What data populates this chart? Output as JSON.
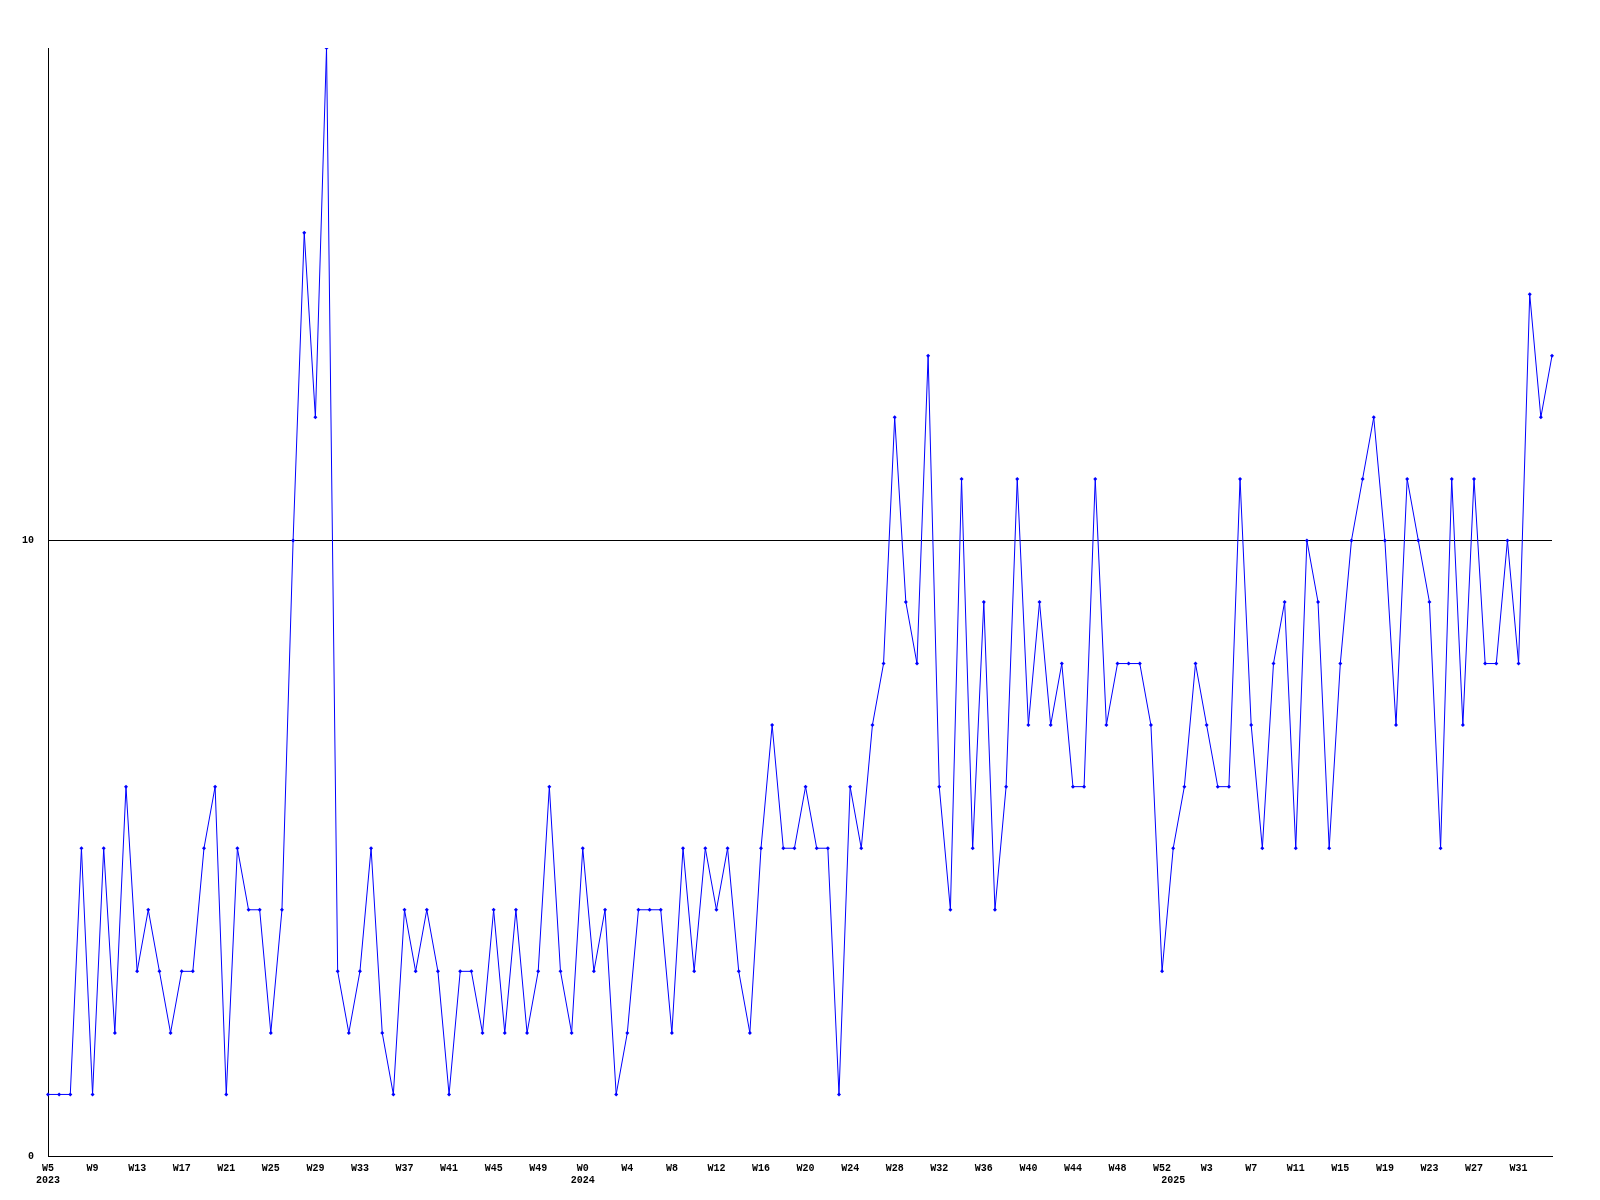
{
  "chart_data": {
    "type": "line",
    "categories": [
      "W5\n2023",
      null,
      null,
      null,
      "W9",
      null,
      null,
      null,
      "W13",
      null,
      null,
      null,
      "W17",
      null,
      null,
      null,
      "W21",
      null,
      null,
      null,
      "W25",
      null,
      null,
      null,
      "W29",
      null,
      null,
      null,
      "W33",
      null,
      null,
      null,
      "W37",
      null,
      null,
      null,
      "W41",
      null,
      null,
      null,
      "W45",
      null,
      null,
      null,
      "W49",
      null,
      null,
      null,
      "W0\n2024",
      null,
      null,
      null,
      "W4",
      null,
      null,
      null,
      "W8",
      null,
      null,
      null,
      "W12",
      null,
      null,
      null,
      "W16",
      null,
      null,
      null,
      "W20",
      null,
      null,
      null,
      "W24",
      null,
      null,
      null,
      "W28",
      null,
      null,
      null,
      "W32",
      null,
      null,
      null,
      "W36",
      null,
      null,
      null,
      "W40",
      null,
      null,
      null,
      "W44",
      null,
      null,
      null,
      "W48",
      null,
      null,
      null,
      "W52",
      "\n2025",
      null,
      null,
      "W3",
      null,
      null,
      null,
      "W7",
      null,
      null,
      null,
      "W11",
      null,
      null,
      null,
      "W15",
      null,
      null,
      null,
      "W19",
      null,
      null,
      null,
      "W23",
      null,
      null,
      null,
      "W27",
      null,
      null,
      null,
      "W31",
      null,
      null,
      null
    ],
    "series": [
      {
        "color": "#0000ff",
        "values": [
          1,
          1,
          1,
          5,
          1,
          5,
          2,
          6,
          3,
          4,
          3,
          2,
          3,
          3,
          5,
          6,
          1,
          5,
          4,
          4,
          2,
          4,
          10,
          15,
          12,
          18,
          3,
          2,
          3,
          5,
          2,
          1,
          4,
          3,
          4,
          3,
          1,
          3,
          3,
          2,
          4,
          2,
          4,
          2,
          3,
          6,
          3,
          2,
          5,
          3,
          4,
          1,
          2,
          4,
          4,
          4,
          2,
          5,
          3,
          5,
          4,
          5,
          3,
          2,
          5,
          7,
          5,
          5,
          6,
          5,
          5,
          1,
          6,
          5,
          7,
          8,
          12,
          9,
          8,
          13,
          6,
          4,
          11,
          5,
          9,
          4,
          6,
          11,
          7,
          9,
          7,
          8,
          6,
          6,
          11,
          7,
          8,
          8,
          8,
          7,
          3,
          5,
          6,
          8,
          7,
          6,
          6,
          11,
          7,
          5,
          8,
          9,
          5,
          10,
          9,
          5,
          8,
          10,
          11,
          12,
          10,
          7,
          11,
          10,
          9,
          5,
          11,
          7,
          11,
          8,
          8,
          10,
          8,
          14,
          12,
          13
        ]
      }
    ],
    "ylim": [
      0,
      18
    ],
    "yticks": [
      0,
      10
    ],
    "grid": "y",
    "marker": "diamond",
    "line_style": "solid"
  }
}
